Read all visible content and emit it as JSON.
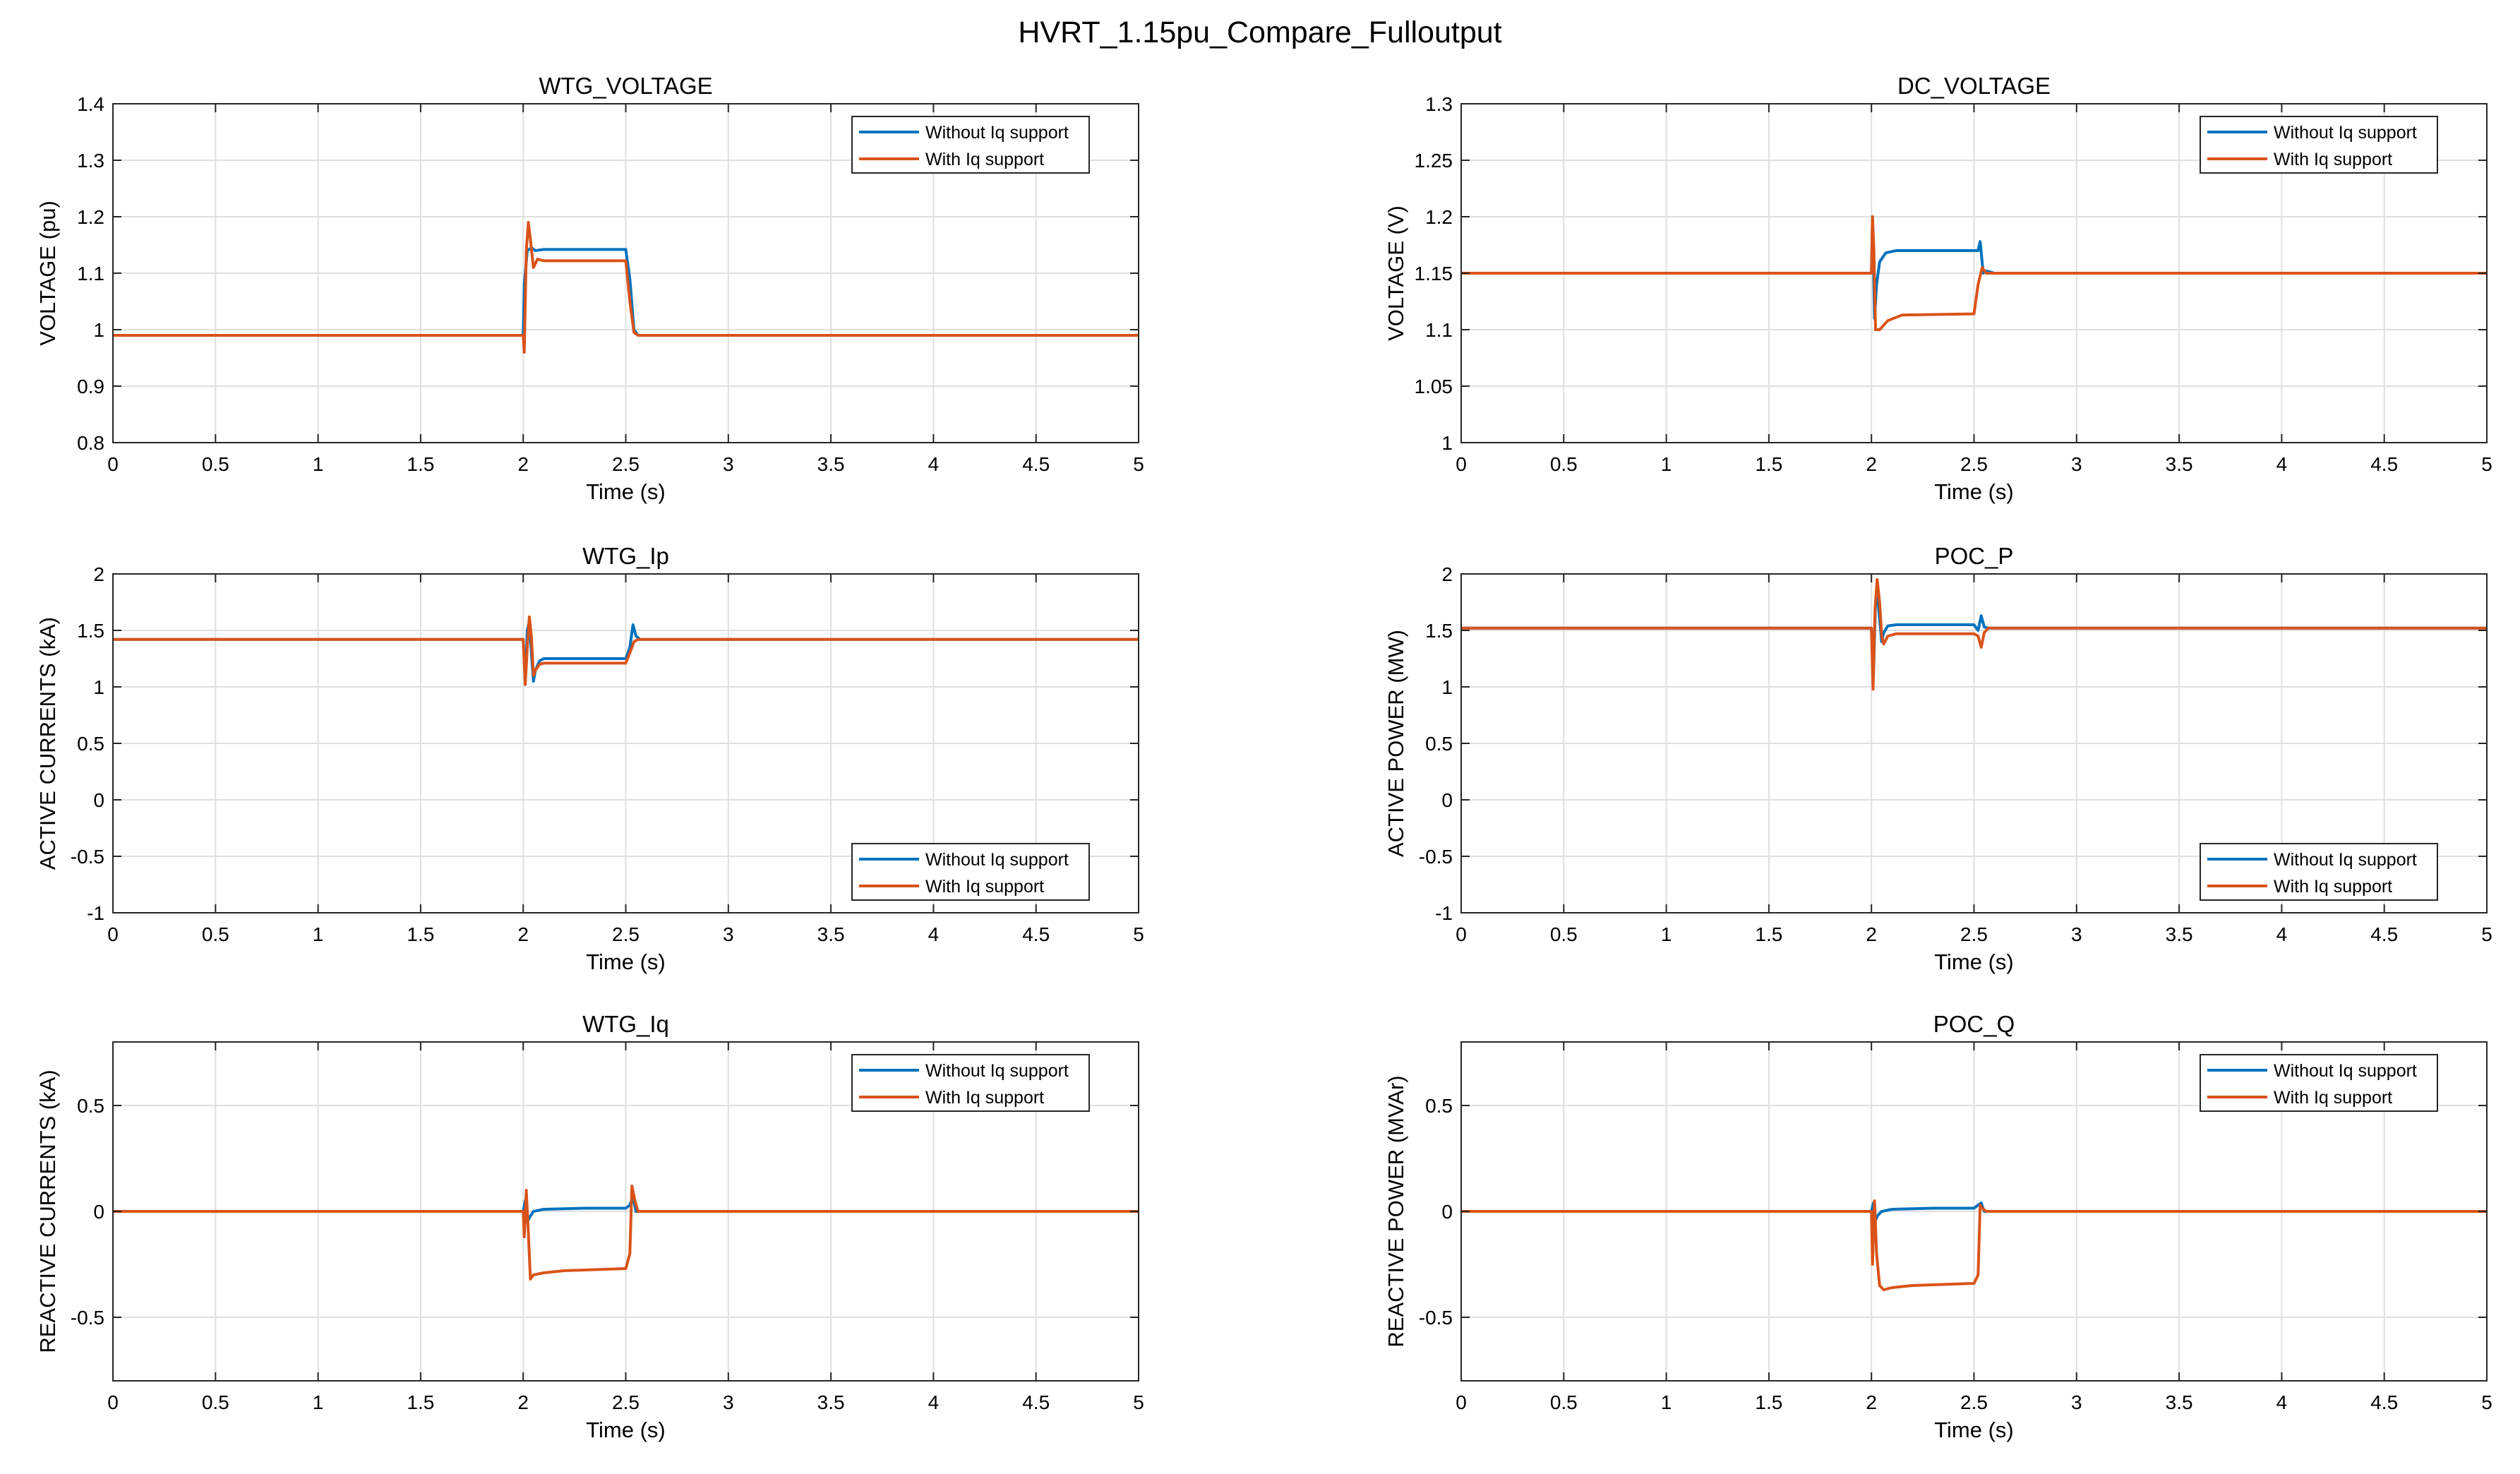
{
  "figure_title": "HVRT_1.15pu_Compare_Fulloutput",
  "colors": {
    "series_without": "#0072BD",
    "series_with": "#D95319",
    "grid": "#DFDFDF",
    "axis": "#262626"
  },
  "chart_data": [
    {
      "type": "line",
      "title": "WTG_VOLTAGE",
      "xlabel": "Time (s)",
      "ylabel": "VOLTAGE (pu)",
      "xlim": [
        0,
        5
      ],
      "ylim": [
        0.8,
        1.4
      ],
      "xticks": [
        0,
        0.5,
        1,
        1.5,
        2,
        2.5,
        3,
        3.5,
        4,
        4.5,
        5
      ],
      "xtick_labels": [
        "0",
        "0.5",
        "1",
        "1.5",
        "2",
        "2.5",
        "3",
        "3.5",
        "4",
        "4.5",
        "5"
      ],
      "yticks": [
        0.8,
        0.9,
        1,
        1.1,
        1.2,
        1.3,
        1.4
      ],
      "ytick_labels": [
        "0.8",
        "0.9",
        "1",
        "1.1",
        "1.2",
        "1.3",
        "1.4"
      ],
      "grid": true,
      "legend": "top-right",
      "series": [
        {
          "name": "Without Iq support",
          "x": [
            0,
            2.0,
            2.005,
            2.02,
            2.04,
            2.06,
            2.1,
            2.5,
            2.52,
            2.54,
            2.56,
            2.6,
            5
          ],
          "y": [
            0.99,
            0.99,
            1.08,
            1.14,
            1.145,
            1.14,
            1.142,
            1.142,
            1.09,
            1.0,
            0.99,
            0.99,
            0.99
          ]
        },
        {
          "name": "With Iq support",
          "x": [
            0,
            2.0,
            2.005,
            2.015,
            2.025,
            2.035,
            2.05,
            2.07,
            2.1,
            2.5,
            2.52,
            2.54,
            2.56,
            2.6,
            5
          ],
          "y": [
            0.99,
            0.99,
            0.96,
            1.14,
            1.19,
            1.16,
            1.11,
            1.125,
            1.122,
            1.122,
            1.05,
            0.995,
            0.99,
            0.99,
            0.99
          ]
        }
      ]
    },
    {
      "type": "line",
      "title": "DC_VOLTAGE",
      "xlabel": "Time (s)",
      "ylabel": "VOLTAGE (V)",
      "xlim": [
        0,
        5
      ],
      "ylim": [
        1,
        1.3
      ],
      "xticks": [
        0,
        0.5,
        1,
        1.5,
        2,
        2.5,
        3,
        3.5,
        4,
        4.5,
        5
      ],
      "xtick_labels": [
        "0",
        "0.5",
        "1",
        "1.5",
        "2",
        "2.5",
        "3",
        "3.5",
        "4",
        "4.5",
        "5"
      ],
      "yticks": [
        1,
        1.05,
        1.1,
        1.15,
        1.2,
        1.25,
        1.3
      ],
      "ytick_labels": [
        "1",
        "1.05",
        "1.1",
        "1.15",
        "1.2",
        "1.25",
        "1.3"
      ],
      "grid": true,
      "legend": "top-right",
      "series": [
        {
          "name": "Without Iq support",
          "x": [
            0,
            2.0,
            2.005,
            2.015,
            2.025,
            2.04,
            2.07,
            2.12,
            2.2,
            2.52,
            2.53,
            2.545,
            2.56,
            2.6,
            5
          ],
          "y": [
            1.15,
            1.15,
            1.2,
            1.11,
            1.14,
            1.16,
            1.168,
            1.17,
            1.17,
            1.17,
            1.178,
            1.15,
            1.152,
            1.15,
            1.15
          ]
        },
        {
          "name": "With Iq support",
          "x": [
            0,
            2.0,
            2.005,
            2.012,
            2.02,
            2.04,
            2.08,
            2.15,
            2.5,
            2.52,
            2.54,
            2.56,
            2.6,
            5
          ],
          "y": [
            1.15,
            1.15,
            1.2,
            1.17,
            1.1,
            1.1,
            1.108,
            1.113,
            1.114,
            1.14,
            1.155,
            1.15,
            1.15,
            1.15
          ]
        }
      ]
    },
    {
      "type": "line",
      "title": "WTG_Ip",
      "xlabel": "Time (s)",
      "ylabel": "ACTIVE CURRENTS (kA)",
      "xlim": [
        0,
        5
      ],
      "ylim": [
        -1,
        2
      ],
      "xticks": [
        0,
        0.5,
        1,
        1.5,
        2,
        2.5,
        3,
        3.5,
        4,
        4.5,
        5
      ],
      "xtick_labels": [
        "0",
        "0.5",
        "1",
        "1.5",
        "2",
        "2.5",
        "3",
        "3.5",
        "4",
        "4.5",
        "5"
      ],
      "yticks": [
        -1,
        -0.5,
        0,
        0.5,
        1,
        1.5,
        2
      ],
      "ytick_labels": [
        "-1",
        "-0.5",
        "0",
        "0.5",
        "1",
        "1.5",
        "2"
      ],
      "grid": true,
      "legend": "bottom-right",
      "series": [
        {
          "name": "Without Iq support",
          "x": [
            0,
            2.0,
            2.01,
            2.02,
            2.03,
            2.04,
            2.05,
            2.06,
            2.08,
            2.1,
            2.5,
            2.52,
            2.535,
            2.55,
            2.57,
            2.6,
            5
          ],
          "y": [
            1.42,
            1.42,
            1.05,
            1.5,
            1.58,
            1.3,
            1.05,
            1.15,
            1.23,
            1.25,
            1.25,
            1.35,
            1.55,
            1.45,
            1.42,
            1.42,
            1.42
          ]
        },
        {
          "name": "With Iq support",
          "x": [
            0,
            2.0,
            2.01,
            2.02,
            2.03,
            2.04,
            2.05,
            2.06,
            2.08,
            2.1,
            2.5,
            2.52,
            2.54,
            2.56,
            2.6,
            5
          ],
          "y": [
            1.42,
            1.42,
            1.02,
            1.35,
            1.62,
            1.45,
            1.1,
            1.15,
            1.2,
            1.21,
            1.21,
            1.3,
            1.4,
            1.42,
            1.42,
            1.42
          ]
        }
      ]
    },
    {
      "type": "line",
      "title": "POC_P",
      "xlabel": "Time (s)",
      "ylabel": "ACTIVE POWER (MW)",
      "xlim": [
        0,
        5
      ],
      "ylim": [
        -1,
        2
      ],
      "xticks": [
        0,
        0.5,
        1,
        1.5,
        2,
        2.5,
        3,
        3.5,
        4,
        4.5,
        5
      ],
      "xtick_labels": [
        "0",
        "0.5",
        "1",
        "1.5",
        "2",
        "2.5",
        "3",
        "3.5",
        "4",
        "4.5",
        "5"
      ],
      "yticks": [
        -1,
        -0.5,
        0,
        0.5,
        1,
        1.5,
        2
      ],
      "ytick_labels": [
        "-1",
        "-0.5",
        "0",
        "0.5",
        "1",
        "1.5",
        "2"
      ],
      "grid": true,
      "legend": "bottom-right",
      "series": [
        {
          "name": "Without Iq support",
          "x": [
            0,
            2.0,
            2.01,
            2.02,
            2.03,
            2.04,
            2.05,
            2.06,
            2.08,
            2.12,
            2.5,
            2.52,
            2.535,
            2.55,
            2.57,
            2.6,
            5
          ],
          "y": [
            1.52,
            1.52,
            1.1,
            1.75,
            1.8,
            1.6,
            1.4,
            1.48,
            1.54,
            1.55,
            1.55,
            1.5,
            1.63,
            1.53,
            1.52,
            1.52,
            1.52
          ]
        },
        {
          "name": "With Iq support",
          "x": [
            0,
            2.0,
            2.008,
            2.018,
            2.028,
            2.04,
            2.05,
            2.06,
            2.08,
            2.12,
            2.5,
            2.52,
            2.535,
            2.55,
            2.57,
            2.6,
            5
          ],
          "y": [
            1.52,
            1.52,
            0.98,
            1.7,
            1.95,
            1.75,
            1.45,
            1.38,
            1.45,
            1.47,
            1.47,
            1.45,
            1.35,
            1.48,
            1.52,
            1.52,
            1.52
          ]
        }
      ]
    },
    {
      "type": "line",
      "title": "WTG_Iq",
      "xlabel": "Time (s)",
      "ylabel": "REACTIVE CURRENTS (kA)",
      "xlim": [
        0,
        5
      ],
      "ylim": [
        -0.8,
        0.8
      ],
      "xticks": [
        0,
        0.5,
        1,
        1.5,
        2,
        2.5,
        3,
        3.5,
        4,
        4.5,
        5
      ],
      "xtick_labels": [
        "0",
        "0.5",
        "1",
        "1.5",
        "2",
        "2.5",
        "3",
        "3.5",
        "4",
        "4.5",
        "5"
      ],
      "yticks": [
        -0.5,
        0,
        0.5
      ],
      "ytick_labels": [
        "-0.5",
        "0",
        "0.5"
      ],
      "grid": true,
      "legend": "top-right",
      "series": [
        {
          "name": "Without Iq support",
          "x": [
            0,
            2.0,
            2.01,
            2.02,
            2.03,
            2.05,
            2.1,
            2.3,
            2.5,
            2.52,
            2.535,
            2.55,
            2.6,
            5
          ],
          "y": [
            0,
            0,
            0.05,
            -0.05,
            -0.03,
            0,
            0.01,
            0.015,
            0.015,
            0.03,
            0.07,
            0.0,
            0.0,
            0.0
          ]
        },
        {
          "name": "With Iq support",
          "x": [
            0,
            2.0,
            2.005,
            2.015,
            2.025,
            2.035,
            2.05,
            2.1,
            2.2,
            2.5,
            2.52,
            2.53,
            2.545,
            2.56,
            2.6,
            5
          ],
          "y": [
            0,
            0,
            -0.12,
            0.1,
            -0.1,
            -0.32,
            -0.3,
            -0.29,
            -0.28,
            -0.27,
            -0.2,
            0.12,
            0.05,
            0.0,
            0.0,
            0.0
          ]
        }
      ]
    },
    {
      "type": "line",
      "title": "POC_Q",
      "xlabel": "Time (s)",
      "ylabel": "REACTIVE POWER (MVAr)",
      "xlim": [
        0,
        5
      ],
      "ylim": [
        -0.8,
        0.8
      ],
      "xticks": [
        0,
        0.5,
        1,
        1.5,
        2,
        2.5,
        3,
        3.5,
        4,
        4.5,
        5
      ],
      "xtick_labels": [
        "0",
        "0.5",
        "1",
        "1.5",
        "2",
        "2.5",
        "3",
        "3.5",
        "4",
        "4.5",
        "5"
      ],
      "yticks": [
        -0.5,
        0,
        0.5
      ],
      "ytick_labels": [
        "-0.5",
        "0",
        "0.5"
      ],
      "grid": true,
      "legend": "top-right",
      "series": [
        {
          "name": "Without Iq support",
          "x": [
            0,
            2.0,
            2.01,
            2.02,
            2.03,
            2.05,
            2.1,
            2.3,
            2.5,
            2.52,
            2.535,
            2.55,
            2.6,
            5
          ],
          "y": [
            0,
            0,
            0.04,
            -0.04,
            -0.02,
            0,
            0.01,
            0.015,
            0.015,
            0.03,
            0.04,
            0.0,
            0.0,
            0.0
          ]
        },
        {
          "name": "With Iq support",
          "x": [
            0,
            2.0,
            2.005,
            2.015,
            2.025,
            2.04,
            2.06,
            2.1,
            2.2,
            2.5,
            2.52,
            2.53,
            2.545,
            2.56,
            2.6,
            5
          ],
          "y": [
            0,
            0,
            -0.25,
            0.05,
            -0.2,
            -0.35,
            -0.37,
            -0.36,
            -0.35,
            -0.34,
            -0.3,
            0.03,
            0.01,
            0.0,
            0.0,
            0.0
          ]
        }
      ]
    }
  ]
}
